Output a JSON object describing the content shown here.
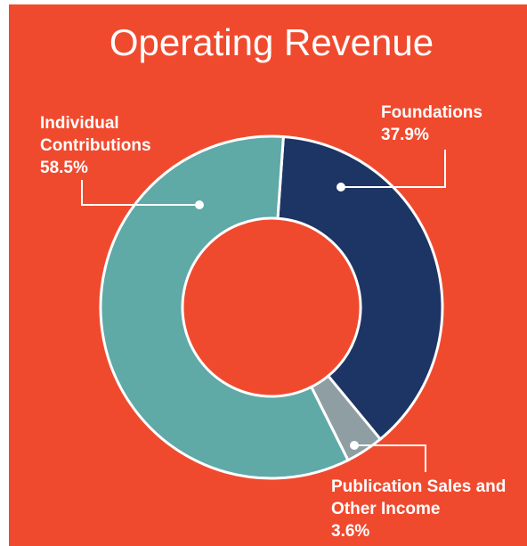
{
  "chart_data": {
    "type": "donut",
    "title": "Operating Revenue",
    "categories": [
      "Foundations",
      "Publication Sales and Other Income",
      "Individual Contributions"
    ],
    "values": [
      37.9,
      3.6,
      58.5
    ],
    "value_labels": [
      "37.9%",
      "3.6%",
      "58.5%"
    ],
    "colors": [
      "#1d3564",
      "#8f9ea3",
      "#5fa9a7"
    ]
  }
}
